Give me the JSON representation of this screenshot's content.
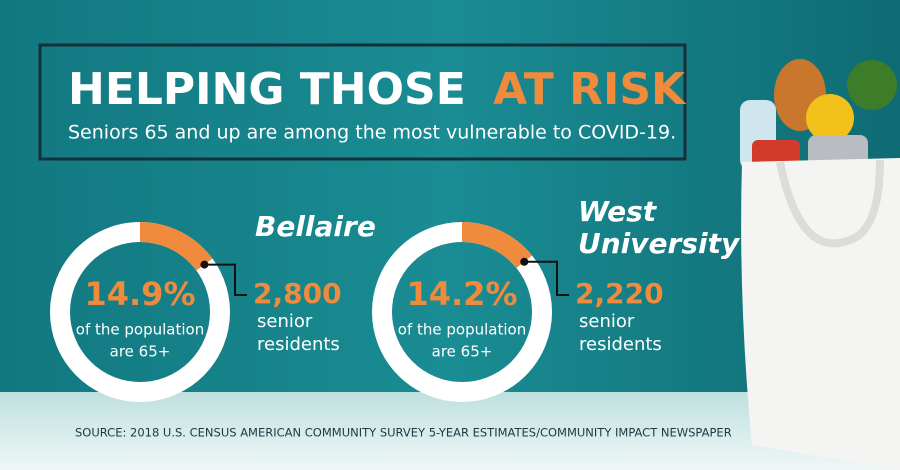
{
  "header": {
    "title_parts": [
      "HELPING THOSE",
      "AT RISK"
    ],
    "subtitle": "Seniors 65 and up are among the most vulnerable to COVID-19."
  },
  "chart_data": [
    {
      "type": "donut",
      "title": [
        "Bellaire"
      ],
      "values": [
        14.9
      ],
      "value_labels": [
        "14.9%"
      ],
      "color": "#f08a3c",
      "caption": [
        "of the population",
        "are 65+"
      ],
      "count": "2,800",
      "count_text": [
        "senior",
        "residents"
      ]
    },
    {
      "type": "donut",
      "title": [
        "West",
        "University"
      ],
      "values": [
        14.2
      ],
      "value_labels": [
        "14.2%"
      ],
      "color": "#f08a3c",
      "caption": [
        "of the population",
        "are 65+"
      ],
      "count": "2,220",
      "count_text": [
        "senior",
        "residents"
      ]
    }
  ],
  "source": "SOURCE: 2018 U.S. CENSUS AMERICAN COMMUNITY SURVEY 5-YEAR ESTIMATES/COMMUNITY IMPACT NEWSPAPER"
}
